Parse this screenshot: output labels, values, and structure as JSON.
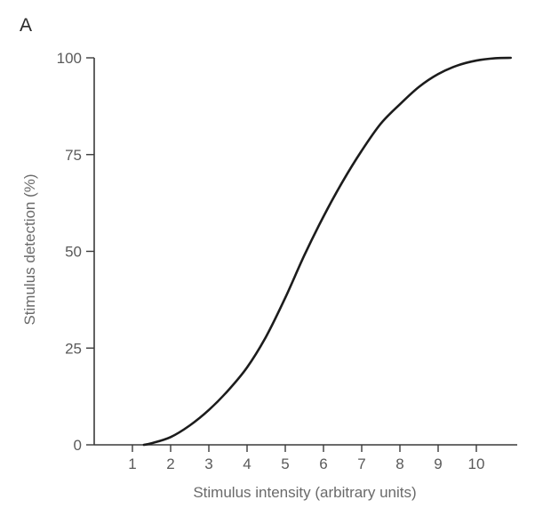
{
  "panel_label": "A",
  "chart_data": {
    "type": "line",
    "xlabel": "Stimulus intensity (arbitrary units)",
    "ylabel": "Stimulus detection (%)",
    "xlim": [
      0,
      11
    ],
    "ylim": [
      0,
      100
    ],
    "x_ticks": [
      1,
      2,
      3,
      4,
      5,
      6,
      7,
      8,
      9,
      10
    ],
    "y_ticks": [
      0,
      25,
      50,
      75,
      100
    ],
    "grid": false,
    "series": [
      {
        "x": [
          1.3,
          1.5,
          2.0,
          2.5,
          3.0,
          3.5,
          4.0,
          4.5,
          5.0,
          5.5,
          6.0,
          6.5,
          7.0,
          7.5,
          8.0,
          8.5,
          9.0,
          9.5,
          10.0,
          10.5,
          10.9
        ],
        "values": [
          0,
          0.4,
          2,
          5,
          9,
          14,
          20,
          28,
          38,
          49,
          59,
          68,
          76,
          83,
          88,
          92.5,
          95.8,
          98,
          99.3,
          99.9,
          100
        ]
      }
    ]
  }
}
